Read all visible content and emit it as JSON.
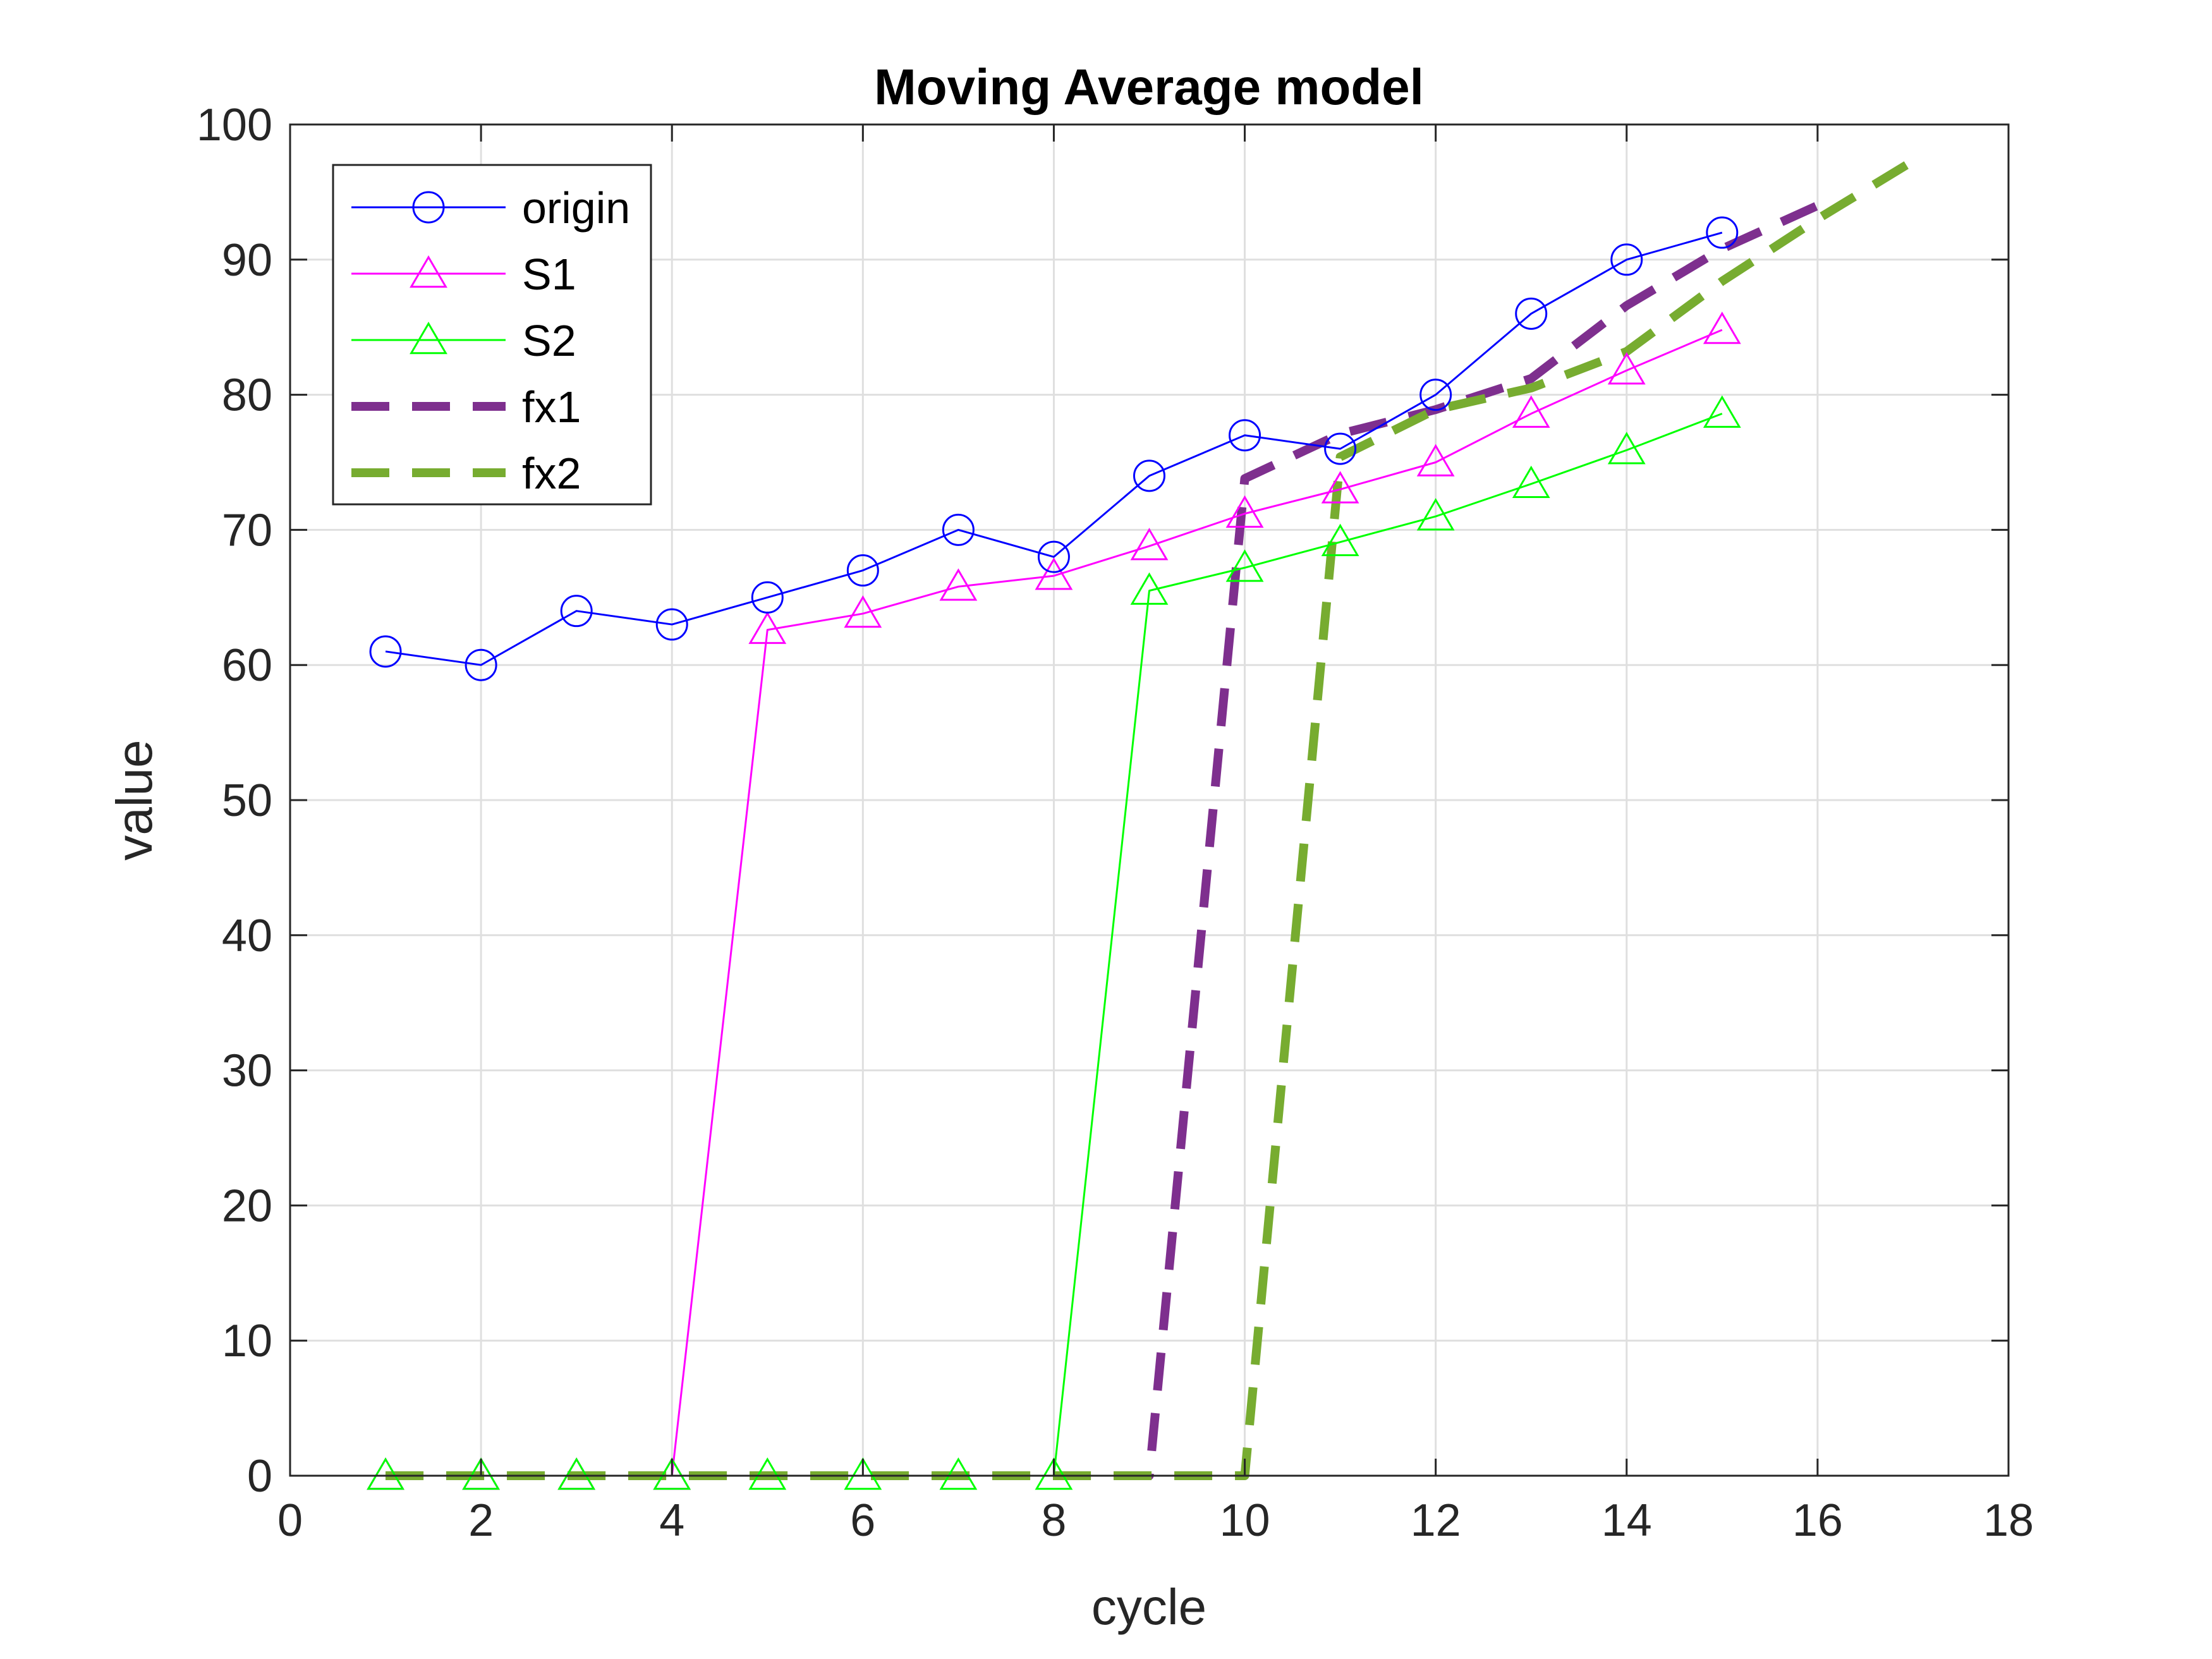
{
  "chart_data": {
    "type": "line",
    "title": "Moving Average model",
    "xlabel": "cycle",
    "ylabel": "value",
    "xlim": [
      0,
      18
    ],
    "ylim": [
      0,
      100
    ],
    "xticks": [
      0,
      2,
      4,
      6,
      8,
      10,
      12,
      14,
      16,
      18
    ],
    "yticks": [
      0,
      10,
      20,
      30,
      40,
      50,
      60,
      70,
      80,
      90,
      100
    ],
    "grid": true,
    "legend_position": "top-left",
    "series": [
      {
        "name": "origin",
        "color": "#0000ff",
        "marker": "circle",
        "line": "solid",
        "x": [
          1,
          2,
          3,
          4,
          5,
          6,
          7,
          8,
          9,
          10,
          11,
          12,
          13,
          14,
          15
        ],
        "y": [
          61,
          60,
          64,
          63,
          65,
          67,
          70,
          68,
          74,
          77,
          76,
          80,
          86,
          90,
          92
        ]
      },
      {
        "name": "S1",
        "color": "#ff00ff",
        "marker": "triangle",
        "line": "solid",
        "x": [
          1,
          2,
          3,
          4,
          5,
          6,
          7,
          8,
          9,
          10,
          11,
          12,
          13,
          14,
          15
        ],
        "y": [
          0,
          0,
          0,
          0,
          62.6,
          63.8,
          65.8,
          66.6,
          68.8,
          71.2,
          73.0,
          75.0,
          78.6,
          81.8,
          84.8
        ]
      },
      {
        "name": "S2",
        "color": "#00ff00",
        "marker": "triangle",
        "line": "solid",
        "x": [
          1,
          2,
          3,
          4,
          5,
          6,
          7,
          8,
          9,
          10,
          11,
          12,
          13,
          14,
          15
        ],
        "y": [
          0,
          0,
          0,
          0,
          0,
          0,
          0,
          0,
          65.5,
          67.2,
          69.1,
          71.0,
          73.4,
          75.9,
          78.6
        ]
      },
      {
        "name": "fx1",
        "color": "#7e2f8e",
        "marker": "none",
        "line": "dashed",
        "x": [
          1,
          2,
          3,
          4,
          5,
          6,
          7,
          8,
          9,
          10,
          11,
          12,
          13,
          14,
          15,
          16
        ],
        "y": [
          0,
          0,
          0,
          0,
          0,
          0,
          0,
          0,
          0,
          73.8,
          77.1,
          78.9,
          81.2,
          86.6,
          90.8,
          94.0
        ]
      },
      {
        "name": "fx2",
        "color": "#77ac30",
        "marker": "none",
        "line": "dashed",
        "x": [
          1,
          2,
          3,
          4,
          5,
          6,
          7,
          8,
          9,
          10,
          11,
          12,
          13,
          14,
          15,
          16,
          17
        ],
        "y": [
          0,
          0,
          0,
          0,
          0,
          0,
          0,
          0,
          0,
          0,
          75.4,
          78.9,
          80.5,
          83.2,
          88.4,
          93.0,
          97.3
        ]
      }
    ]
  }
}
